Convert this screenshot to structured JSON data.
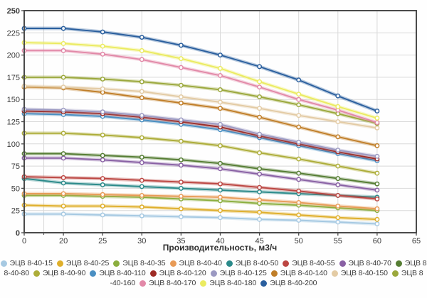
{
  "chart_data": {
    "type": "line",
    "title": "",
    "xlabel": "Производительность, м3/ч",
    "ylabel": "",
    "x_categories": [
      "0",
      "20",
      "25",
      "30",
      "35",
      "40",
      "45",
      "50",
      "55",
      "60"
    ],
    "x_axis_tick_labels": [
      "0",
      "20",
      "25",
      "30",
      "35",
      "40",
      "45",
      "50",
      "55",
      "60",
      "65"
    ],
    "y_ticks": [
      0,
      25,
      50,
      75,
      100,
      125,
      150,
      175,
      200,
      225,
      250
    ],
    "ylim": [
      0,
      250
    ],
    "grid": true,
    "minor_gridline_between_first_two_ticks": true,
    "legend_position": "bottom",
    "series": [
      {
        "name": "ЭЦВ 8-40-15",
        "color": "#a6c9e2",
        "values": [
          21,
          21,
          20,
          19,
          18,
          17,
          15,
          14,
          12,
          10
        ]
      },
      {
        "name": "ЭЦВ 8-40-25",
        "color": "#dfaf2b",
        "values": [
          31,
          30,
          30,
          29,
          27,
          25,
          23,
          20,
          17,
          15
        ]
      },
      {
        "name": "ЭЦВ 8-40-35",
        "color": "#8bae3e",
        "values": [
          42,
          42,
          41,
          40,
          38,
          36,
          33,
          31,
          28,
          25
        ]
      },
      {
        "name": "ЭЦВ 8-40-40",
        "color": "#e89b57",
        "values": [
          44,
          44,
          43,
          42,
          41,
          40,
          37,
          34,
          30,
          27
        ]
      },
      {
        "name": "ЭЦВ 8-40-50",
        "color": "#2b8a8a",
        "values": [
          61,
          56,
          54,
          52,
          50,
          48,
          46,
          44,
          42,
          40
        ]
      },
      {
        "name": "ЭЦВ 8-40-55",
        "color": "#bc4642",
        "values": [
          63,
          62,
          61,
          59,
          57,
          55,
          51,
          47,
          42,
          38
        ]
      },
      {
        "name": "ЭЦВ 8-40-70",
        "color": "#8961a4",
        "values": [
          84,
          84,
          82,
          79,
          76,
          72,
          66,
          60,
          54,
          48
        ]
      },
      {
        "name": "ЭЦВ 8-40-80",
        "color": "#557d33",
        "values": [
          89,
          89,
          87,
          85,
          82,
          78,
          72,
          67,
          61,
          55
        ]
      },
      {
        "name": "ЭЦВ 8-40-90",
        "color": "#adad39",
        "values": [
          112,
          112,
          110,
          107,
          103,
          98,
          90,
          83,
          75,
          67
        ]
      },
      {
        "name": "ЭЦВ 8-40-110",
        "color": "#4a8fc2",
        "values": [
          134,
          133,
          131,
          127,
          122,
          116,
          107,
          98,
          89,
          81
        ]
      },
      {
        "name": "ЭЦВ 8-40-120",
        "color": "#9e2b25",
        "values": [
          137,
          136,
          134,
          130,
          125,
          119,
          109,
          100,
          91,
          83
        ]
      },
      {
        "name": "ЭЦВ 8-40-125",
        "color": "#9b99c2",
        "values": [
          139,
          138,
          136,
          132,
          127,
          122,
          111,
          102,
          93,
          86
        ]
      },
      {
        "name": "ЭЦВ 8-40-140",
        "color": "#c07e28",
        "values": [
          164,
          163,
          158,
          152,
          146,
          140,
          130,
          119,
          108,
          98
        ]
      },
      {
        "name": "ЭЦВ 8-40-150",
        "color": "#e3cba4",
        "values": [
          165,
          164,
          162,
          159,
          153,
          147,
          140,
          132,
          125,
          118
        ]
      },
      {
        "name": "ЭЦВ 8-40-160",
        "color": "#9ba83c",
        "values": [
          175,
          175,
          173,
          170,
          166,
          161,
          153,
          144,
          134,
          123
        ]
      },
      {
        "name": "ЭЦВ 8-40-170",
        "color": "#e289a8",
        "values": [
          205,
          205,
          201,
          195,
          186,
          177,
          164,
          150,
          138,
          124
        ]
      },
      {
        "name": "ЭЦВ 8-40-180",
        "color": "#ebeb60",
        "values": [
          214,
          213,
          210,
          205,
          196,
          185,
          170,
          156,
          142,
          129
        ]
      },
      {
        "name": "ЭЦВ 8-40-200",
        "color": "#2a5f9e",
        "values": [
          230,
          230,
          226,
          220,
          211,
          200,
          187,
          172,
          154,
          137
        ]
      }
    ]
  },
  "legend": {
    "rows": [
      [
        {
          "dot": true,
          "color": "#a6c9e2",
          "label": "ЭЦВ 8-40-15"
        },
        {
          "dot": true,
          "color": "#dfaf2b",
          "label": "ЭЦВ 8-40-25"
        },
        {
          "dot": true,
          "color": "#8bae3e",
          "label": "ЭЦВ 8-40-35"
        },
        {
          "dot": true,
          "color": "#e89b57",
          "label": "ЭЦВ 8-40-40"
        },
        {
          "dot": true,
          "color": "#2b8a8a",
          "label": "ЭЦВ 8-40-50"
        },
        {
          "dot": true,
          "color": "#bc4642",
          "label": "ЭЦВ 8-40-55"
        },
        {
          "dot": true,
          "color": "#8961a4",
          "label": "ЭЦВ 8-40-70"
        },
        {
          "dot": true,
          "color": "#557d33",
          "label": "ЭЦВ 8"
        }
      ],
      [
        {
          "dot": false,
          "color": "",
          "label": "8-40-80"
        },
        {
          "dot": true,
          "color": "#adad39",
          "label": "ЭЦВ 8-40-90"
        },
        {
          "dot": true,
          "color": "#4a8fc2",
          "label": "ЭЦВ 8-40-110"
        },
        {
          "dot": true,
          "color": "#9e2b25",
          "label": "ЭЦВ 8-40-120"
        },
        {
          "dot": true,
          "color": "#9b99c2",
          "label": "ЭЦВ 8-40-125"
        },
        {
          "dot": true,
          "color": "#c07e28",
          "label": "ЭЦВ 8-40-140"
        },
        {
          "dot": true,
          "color": "#e3cba4",
          "label": "ЭЦВ 8-40-150"
        },
        {
          "dot": true,
          "color": "#9ba83c",
          "label": "ЭЦВ 8"
        }
      ],
      [
        {
          "dot": false,
          "color": "",
          "label": "-40-160"
        },
        {
          "dot": true,
          "color": "#e289a8",
          "label": "ЭЦВ 8-40-170"
        },
        {
          "dot": true,
          "color": "#ebeb60",
          "label": "ЭЦВ 8-40-180"
        },
        {
          "dot": true,
          "color": "#2a5f9e",
          "label": "ЭЦВ 8-40-200"
        }
      ]
    ]
  },
  "colors": {
    "grid": "#d9d9d9",
    "axis_border": "#4a4a4a",
    "tick_label": "#3b3b3b",
    "axis_title": "#2e2e2e"
  }
}
